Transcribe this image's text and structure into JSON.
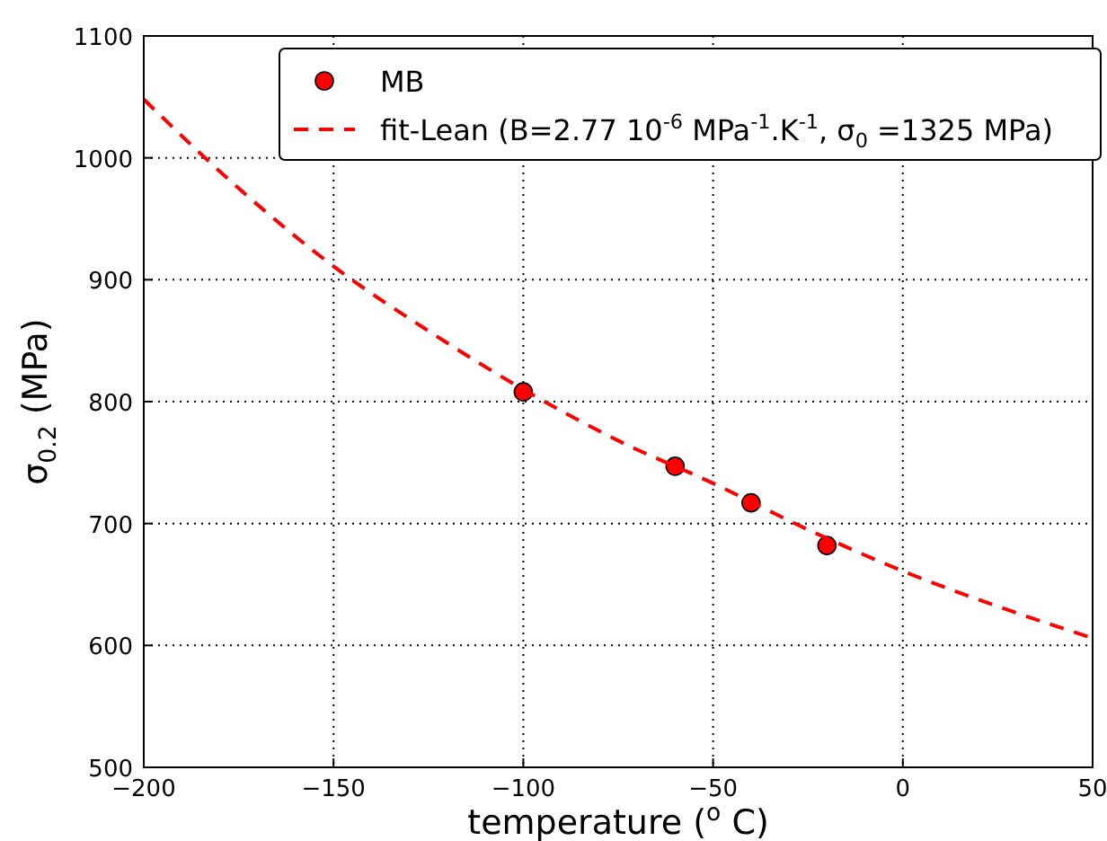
{
  "chart_data": {
    "type": "scatter",
    "xlabel": "temperature ($^{o}$ C)",
    "ylabel": "σ$_{0.2}$ (MPa)",
    "xlim": [
      -200,
      50
    ],
    "xticks": [
      {
        "value": -200,
        "label": "−200"
      },
      {
        "value": -150,
        "label": "−150"
      },
      {
        "value": -100,
        "label": "−100"
      },
      {
        "value": -50,
        "label": "−50"
      },
      0,
      50
    ],
    "ylim": [
      500,
      1100
    ],
    "yticks": [
      500,
      600,
      700,
      800,
      900,
      1000,
      1100
    ],
    "grid": true,
    "legend": "top",
    "series": [
      {
        "name": "MB",
        "color": "#ff0000",
        "marker": "circle",
        "x": [
          -100,
          -60,
          -40,
          -20
        ],
        "values": [
          808,
          747,
          717,
          682
        ]
      },
      {
        "name": "fit-Lean (B=2.77 10$^{-6}$ MPa$^{-1}$.K$^{-1}$, σ$_{0}$ =1325 MPa)",
        "type": "line",
        "color": "#ff0000",
        "line_style": "dashed",
        "marker": "none",
        "x": [
          -200,
          -175,
          -150,
          -125,
          -100,
          -75,
          -50,
          -25,
          0,
          25,
          50
        ],
        "values": [
          1048,
          975,
          911,
          858,
          810,
          768,
          733,
          695,
          661,
          632,
          606
        ]
      }
    ]
  }
}
